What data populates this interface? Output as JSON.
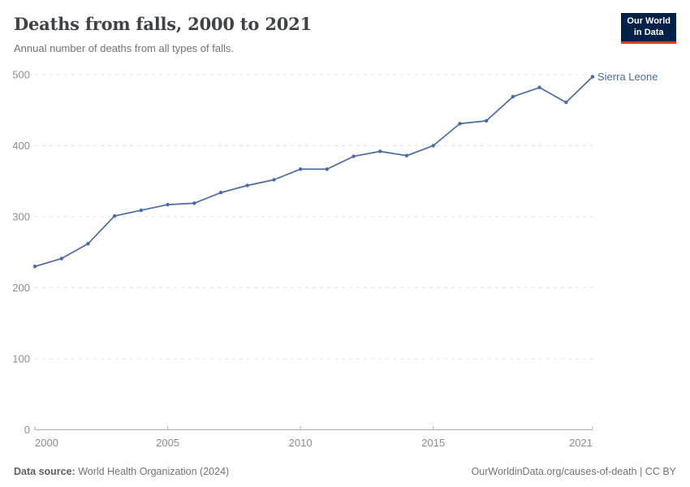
{
  "header": {
    "title": "Deaths from falls, 2000 to 2021",
    "subtitle": "Annual number of deaths from all types of falls."
  },
  "logo": {
    "line1": "Our World",
    "line2": "in Data"
  },
  "footer": {
    "source_label": "Data source:",
    "source_value": " World Health Organization (2024)",
    "credit": "OurWorldinData.org/causes-of-death | CC BY"
  },
  "colors": {
    "line": "#4a6aa5",
    "entity_label": "#4a6aa5",
    "logo_bg": "#002147",
    "logo_accent": "#dc3e26",
    "grid": "#dce1e5",
    "axis": "#a8aeb3",
    "tick_label": "#878d93"
  },
  "chart_data": {
    "type": "line",
    "title": "Deaths from falls, 2000 to 2021",
    "subtitle": "Annual number of deaths from all types of falls.",
    "xlabel": "",
    "ylabel": "",
    "x": [
      2000,
      2001,
      2002,
      2003,
      2004,
      2005,
      2006,
      2007,
      2008,
      2009,
      2010,
      2011,
      2012,
      2013,
      2014,
      2015,
      2016,
      2017,
      2018,
      2019,
      2020,
      2021
    ],
    "series": [
      {
        "name": "Sierra Leone",
        "values": [
          230,
          241,
          262,
          301,
          309,
          317,
          319,
          334,
          344,
          352,
          367,
          367,
          385,
          392,
          386,
          400,
          431,
          435,
          469,
          482,
          461,
          497
        ]
      }
    ],
    "xlim": [
      2000,
      2021
    ],
    "ylim": [
      0,
      500
    ],
    "xticks": [
      2000,
      2005,
      2010,
      2015,
      2021
    ],
    "yticks": [
      0,
      100,
      200,
      300,
      400,
      500
    ],
    "grid": "horizontal-dashed",
    "legend": "end-of-line-label",
    "markers": true
  }
}
